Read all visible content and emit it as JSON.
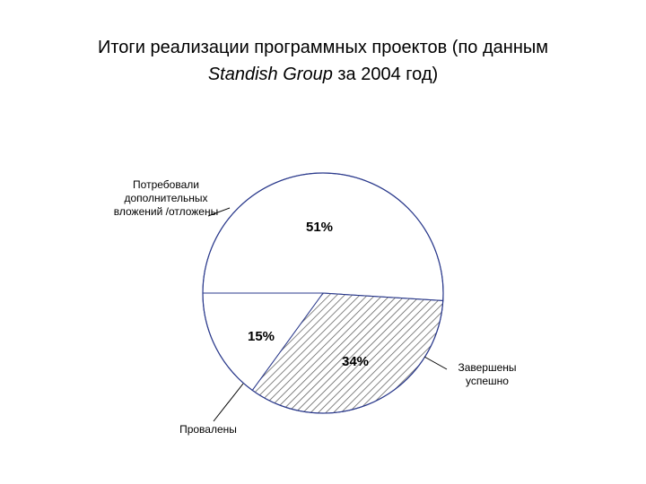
{
  "title": {
    "line1": "Итоги реализации программных проектов (по данным",
    "line2_italic": "Standish Group",
    "line2_rest": " за 2004 год)"
  },
  "chart_data": {
    "type": "pie",
    "slices": [
      {
        "label_lines": [
          "Потребовали",
          "дополнительных",
          "вложений /отложены"
        ],
        "value": 51,
        "percent_label": "51%",
        "pattern": "none"
      },
      {
        "label_lines": [
          "Завершены",
          "успешно"
        ],
        "value": 34,
        "percent_label": "34%",
        "pattern": "hatch"
      },
      {
        "label_lines": [
          "Провалены"
        ],
        "value": 15,
        "percent_label": "15%",
        "pattern": "none"
      }
    ],
    "colors": {
      "outline": "#2b3a8c",
      "leader": "#000000",
      "hatch": "#555555"
    }
  }
}
